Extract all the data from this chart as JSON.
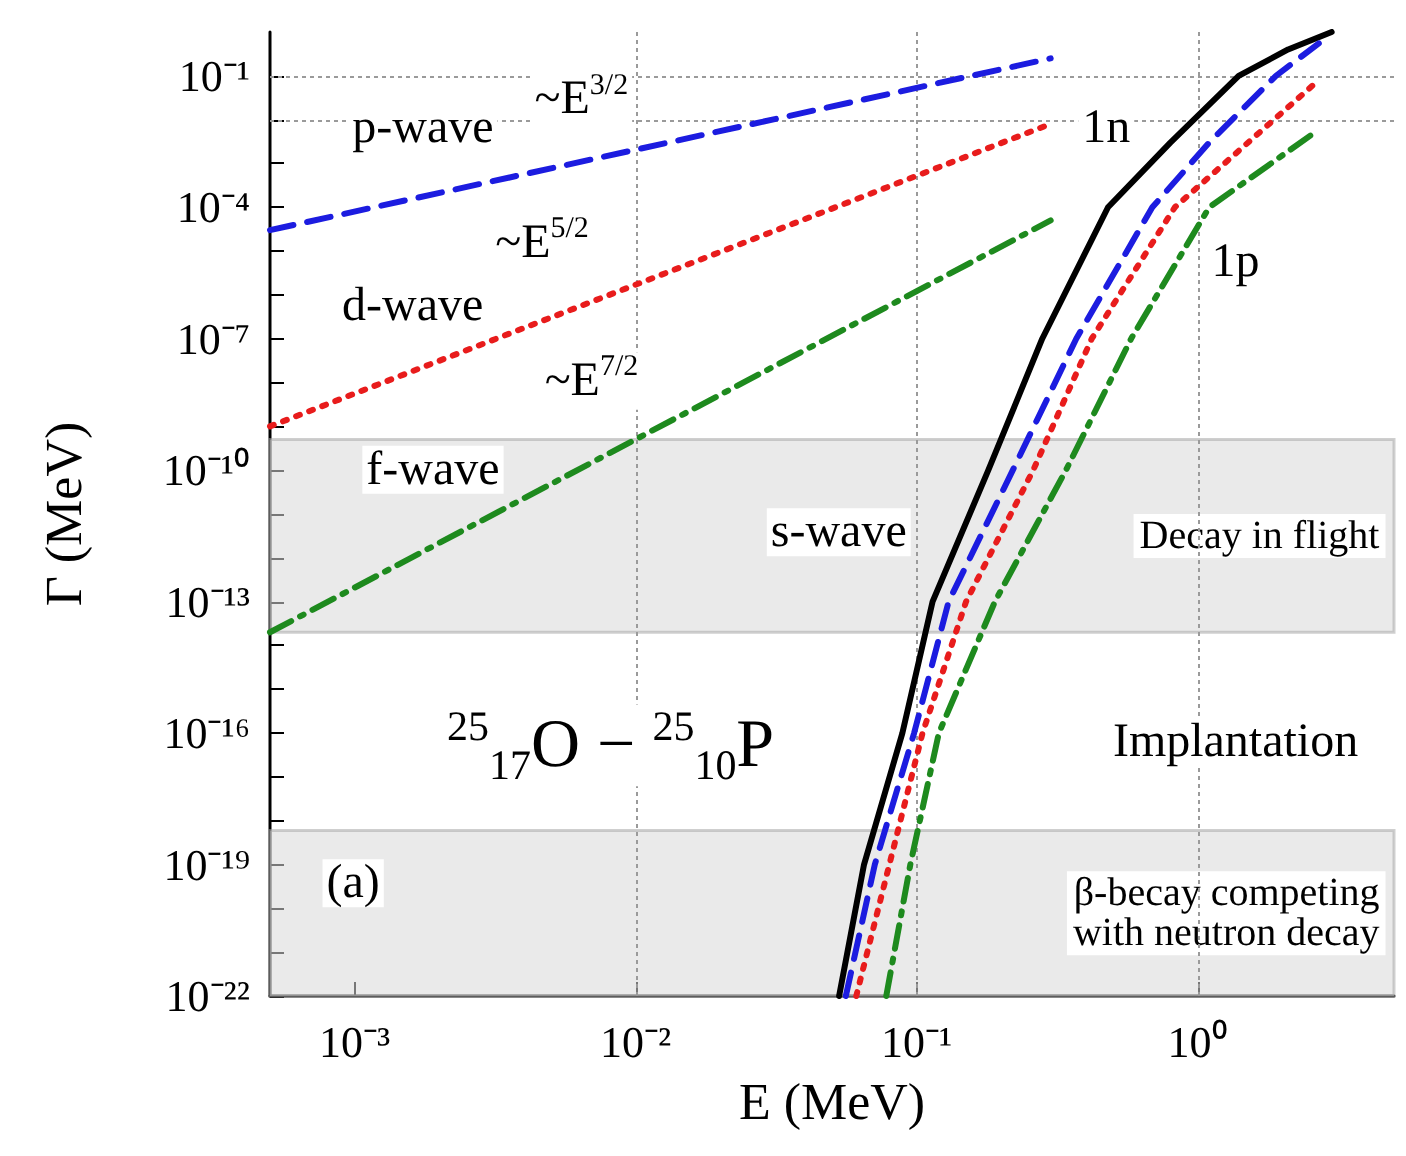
{
  "chart_data": {
    "type": "line",
    "xlabel": "E (MeV)",
    "ylabel": "Γ (MeV)",
    "log": "xy",
    "grid": true,
    "marker": "none",
    "xlim": [
      0.0005,
      5
    ],
    "ylim": [
      1e-22,
      1
    ],
    "xticks": [
      {
        "value": 0.001,
        "label": "10⁻³"
      },
      {
        "value": 0.01,
        "label": "10⁻²"
      },
      {
        "value": 0.1,
        "label": "10⁻¹"
      },
      {
        "value": 1,
        "label": "10⁰"
      }
    ],
    "yticks": [
      {
        "value": 1e-22,
        "label": "10⁻²²"
      },
      {
        "value": 1e-21,
        "label": null
      },
      {
        "value": 1e-20,
        "label": null
      },
      {
        "value": 1e-19,
        "label": "10⁻¹⁹"
      },
      {
        "value": 1e-18,
        "label": null
      },
      {
        "value": 1e-17,
        "label": null
      },
      {
        "value": 1e-16,
        "label": "10⁻¹⁶"
      },
      {
        "value": 1e-15,
        "label": null
      },
      {
        "value": 1e-14,
        "label": null
      },
      {
        "value": 1e-13,
        "label": "10⁻¹³"
      },
      {
        "value": 1e-12,
        "label": null
      },
      {
        "value": 1e-11,
        "label": null
      },
      {
        "value": 1e-10,
        "label": "10⁻¹⁰"
      },
      {
        "value": 1e-09,
        "label": null
      },
      {
        "value": 1e-08,
        "label": null
      },
      {
        "value": 1e-07,
        "label": "10⁻⁷"
      },
      {
        "value": 1e-06,
        "label": null
      },
      {
        "value": 1e-05,
        "label": null
      },
      {
        "value": 0.0001,
        "label": "10⁻⁴"
      },
      {
        "value": 0.001,
        "label": null
      },
      {
        "value": 0.01,
        "label": null
      },
      {
        "value": 0.1,
        "label": "10⁻¹"
      }
    ],
    "series": [
      {
        "color": "#000000",
        "line_style": "solid",
        "x": [
          0.053,
          0.065,
          0.089,
          0.114,
          0.18,
          0.28,
          0.48,
          0.8,
          1.4,
          2.1,
          3.0
        ],
        "values": [
          1e-22,
          1e-19,
          1e-16,
          1e-13,
          1e-10,
          1e-07,
          0.0001,
          0.003,
          0.1,
          0.4,
          1
        ]
      },
      {
        "color": "#1c1ce0",
        "line_style": "dashed",
        "x": [
          0.056,
          0.071,
          0.098,
          0.13,
          0.22,
          0.37,
          0.69,
          1.1,
          1.9,
          2.7
        ],
        "values": [
          1e-22,
          1e-19,
          1e-16,
          1e-13,
          1e-10,
          1e-07,
          0.0001,
          0.003,
          0.1,
          0.55
        ]
      },
      {
        "color": "#e81c1c",
        "line_style": "dotted",
        "x": [
          0.061,
          0.08,
          0.105,
          0.15,
          0.26,
          0.42,
          0.83,
          2.7
        ],
        "values": [
          1e-22,
          1e-19,
          1e-16,
          1e-13,
          1e-10,
          1e-07,
          0.0001,
          0.08
        ]
      },
      {
        "color": "#1e8a1e",
        "line_style": "dashdot",
        "x": [
          0.078,
          0.095,
          0.12,
          0.19,
          0.34,
          0.58,
          1.1,
          2.6
        ],
        "values": [
          1e-22,
          1e-19,
          1e-16,
          1e-13,
          1e-10,
          1e-07,
          0.0001,
          0.005
        ]
      },
      {
        "color": "#1c1ce0",
        "line_style": "dashed",
        "x": [
          0.0005,
          0.3
        ],
        "values": [
          3e-05,
          0.25
        ]
      },
      {
        "color": "#e81c1c",
        "line_style": "dotted",
        "x": [
          0.0005,
          0.3
        ],
        "values": [
          1e-09,
          0.008
        ]
      },
      {
        "color": "#1e8a1e",
        "line_style": "dashdot",
        "x": [
          0.0005,
          0.3
        ],
        "values": [
          2e-14,
          5e-05
        ]
      }
    ],
    "bands": [
      {
        "axis": "y",
        "from": 2e-14,
        "to": 5e-10,
        "label": "Decay in flight",
        "color": "#d8d8d8"
      },
      {
        "axis": "y",
        "from": 1e-22,
        "to": 6e-19,
        "label": "β-becay competing\nwith neutron decay",
        "color": "#d8d8d8"
      }
    ],
    "annotations": [
      "p-wave",
      "~E$^{3/2}$",
      "1n",
      "~E$^{5/2}$",
      "d-wave",
      "1p",
      "~E$^{7/2}$",
      "f-wave",
      "s-wave",
      "Implantation",
      "$^{25}$$_{17}$O − $^{25}$$_{10}$P",
      "(a)"
    ]
  }
}
